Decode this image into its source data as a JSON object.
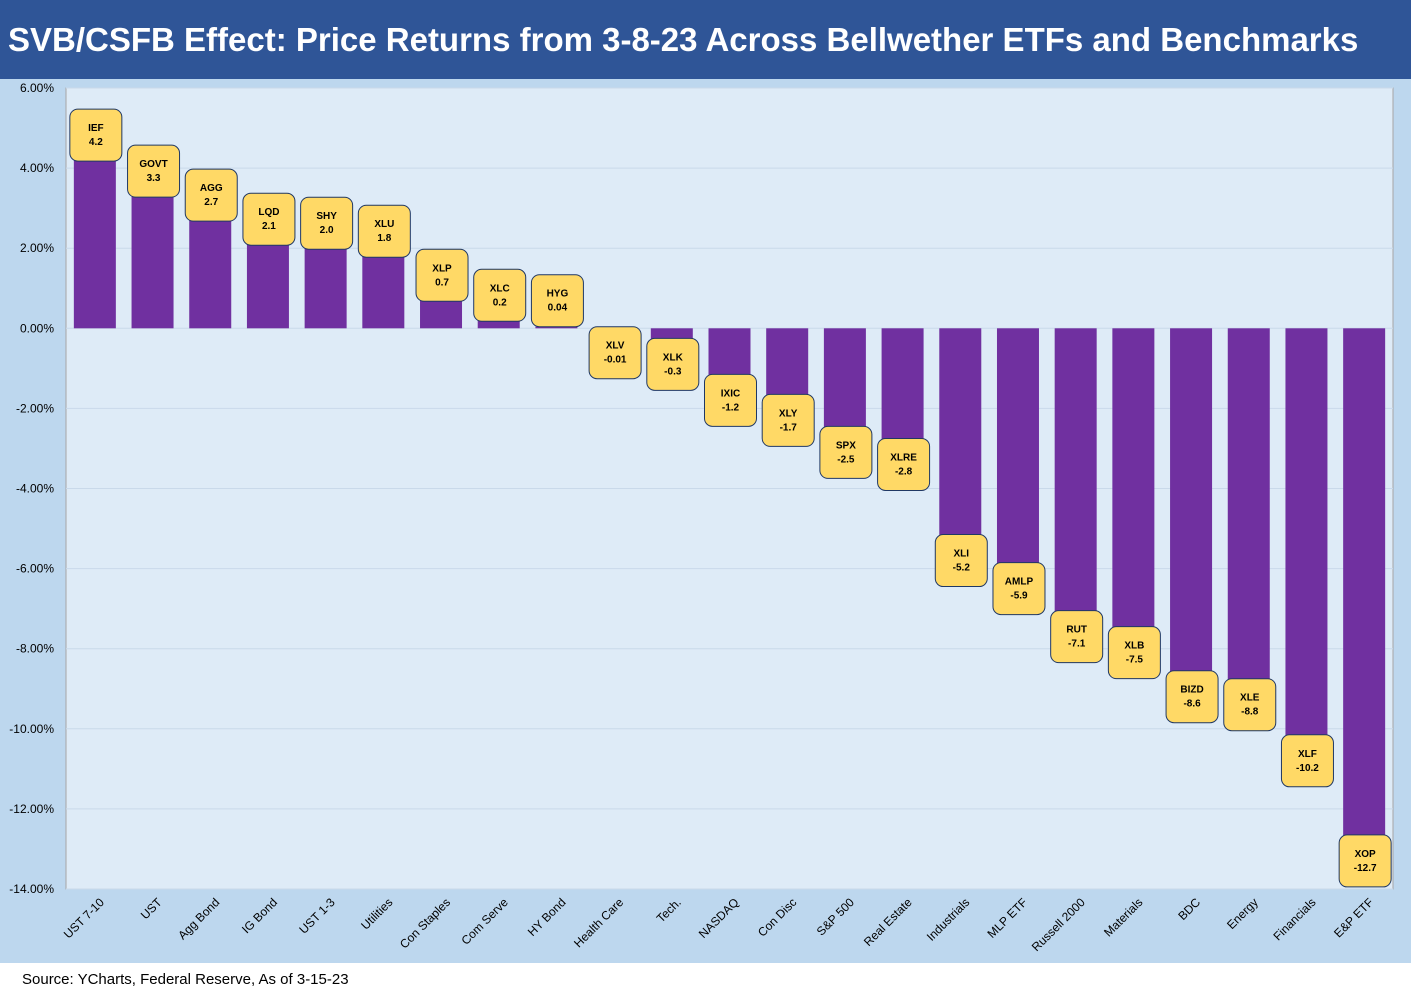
{
  "title": "SVB/CSFB Effect: Price Returns from 3-8-23 Across Bellwether ETFs and Benchmarks",
  "source": "Source: YCharts, Federal Reserve, As of 3-15-23",
  "colors": {
    "header": "#2f5597",
    "background": "#bdd7ee",
    "plot": "#deebf7",
    "bar": "#7030a0",
    "label_fill": "#ffd966",
    "label_border": "#203864"
  },
  "chart_data": {
    "type": "bar",
    "ylim": [
      -14,
      6
    ],
    "yticks": [
      6,
      4,
      2,
      0,
      -2,
      -4,
      -6,
      -8,
      -10,
      -12,
      -14
    ],
    "ytick_labels": [
      "6.00%",
      "4.00%",
      "2.00%",
      "0.00%",
      "-2.00%",
      "-4.00%",
      "-6.00%",
      "-8.00%",
      "-10.00%",
      "-12.00%",
      "-14.00%"
    ],
    "grid": true,
    "categories": [
      "UST 7-10",
      "UST",
      "Agg Bond",
      "IG Bond",
      "UST 1-3",
      "Utilities",
      "Con Staples",
      "Com Serve",
      "HY Bond",
      "Health Care",
      "Tech.",
      "NASDAQ",
      "Con Disc",
      "S&P 500",
      "Real Estate",
      "Industrials",
      "MLP ETF",
      "Russell 2000",
      "Materials",
      "BDC",
      "Energy",
      "Financials",
      "E&P ETF"
    ],
    "values": [
      4.2,
      3.3,
      2.7,
      2.1,
      2.0,
      1.8,
      0.7,
      0.2,
      0.04,
      -0.01,
      -0.3,
      -1.2,
      -1.7,
      -2.5,
      -2.8,
      -5.2,
      -5.9,
      -7.1,
      -7.5,
      -8.6,
      -8.8,
      -10.2,
      -12.7
    ],
    "tickers": [
      "IEF",
      "GOVT",
      "AGG",
      "LQD",
      "SHY",
      "XLU",
      "XLP",
      "XLC",
      "HYG",
      "XLV",
      "XLK",
      "IXIC",
      "XLY",
      "SPX",
      "XLRE",
      "XLI",
      "AMLP",
      "RUT",
      "XLB",
      "BIZD",
      "XLE",
      "XLF",
      "XOP"
    ],
    "value_labels": [
      "4.2",
      "3.3",
      "2.7",
      "2.1",
      "2.0",
      "1.8",
      "0.7",
      "0.2",
      "0.04",
      "-0.01",
      "-0.3",
      "-1.2",
      "-1.7",
      "-2.5",
      "-2.8",
      "-5.2",
      "-5.9",
      "-7.1",
      "-7.5",
      "-8.6",
      "-8.8",
      "-10.2",
      "-12.7"
    ],
    "title": "",
    "xlabel": "",
    "ylabel": ""
  }
}
